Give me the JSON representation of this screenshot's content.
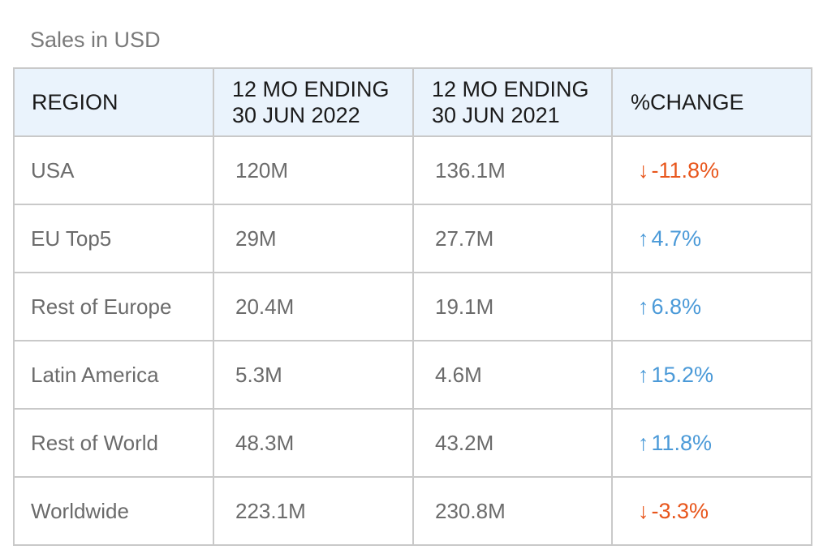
{
  "caption": "Sales in USD",
  "colors": {
    "header_bg": "#eaf3fc",
    "border": "#c9c9c9",
    "decrease": "#e8561c",
    "increase": "#4b9ad8"
  },
  "headers": {
    "region": "REGION",
    "col2_line1": "12 MO ENDING",
    "col2_line2": "30 JUN 2022",
    "col3_line1": "12 MO ENDING",
    "col3_line2": "30 JUN 2021",
    "change": "%CHANGE"
  },
  "rows": [
    {
      "region": "USA",
      "y2022": "120M",
      "y2021": "136.1M",
      "direction": "down",
      "arrow": "↓",
      "change": "-11.8%"
    },
    {
      "region": "EU Top5",
      "y2022": "29M",
      "y2021": "27.7M",
      "direction": "up",
      "arrow": "↑",
      "change": "4.7%"
    },
    {
      "region": "Rest of Europe",
      "y2022": "20.4M",
      "y2021": "19.1M",
      "direction": "up",
      "arrow": "↑",
      "change": "6.8%"
    },
    {
      "region": "Latin America",
      "y2022": "5.3M",
      "y2021": "4.6M",
      "direction": "up",
      "arrow": "↑",
      "change": "15.2%"
    },
    {
      "region": "Rest of World",
      "y2022": "48.3M",
      "y2021": "43.2M",
      "direction": "up",
      "arrow": "↑",
      "change": "11.8%"
    },
    {
      "region": "Worldwide",
      "y2022": "223.1M",
      "y2021": "230.8M",
      "direction": "down",
      "arrow": "↓",
      "change": "-3.3%"
    }
  ]
}
